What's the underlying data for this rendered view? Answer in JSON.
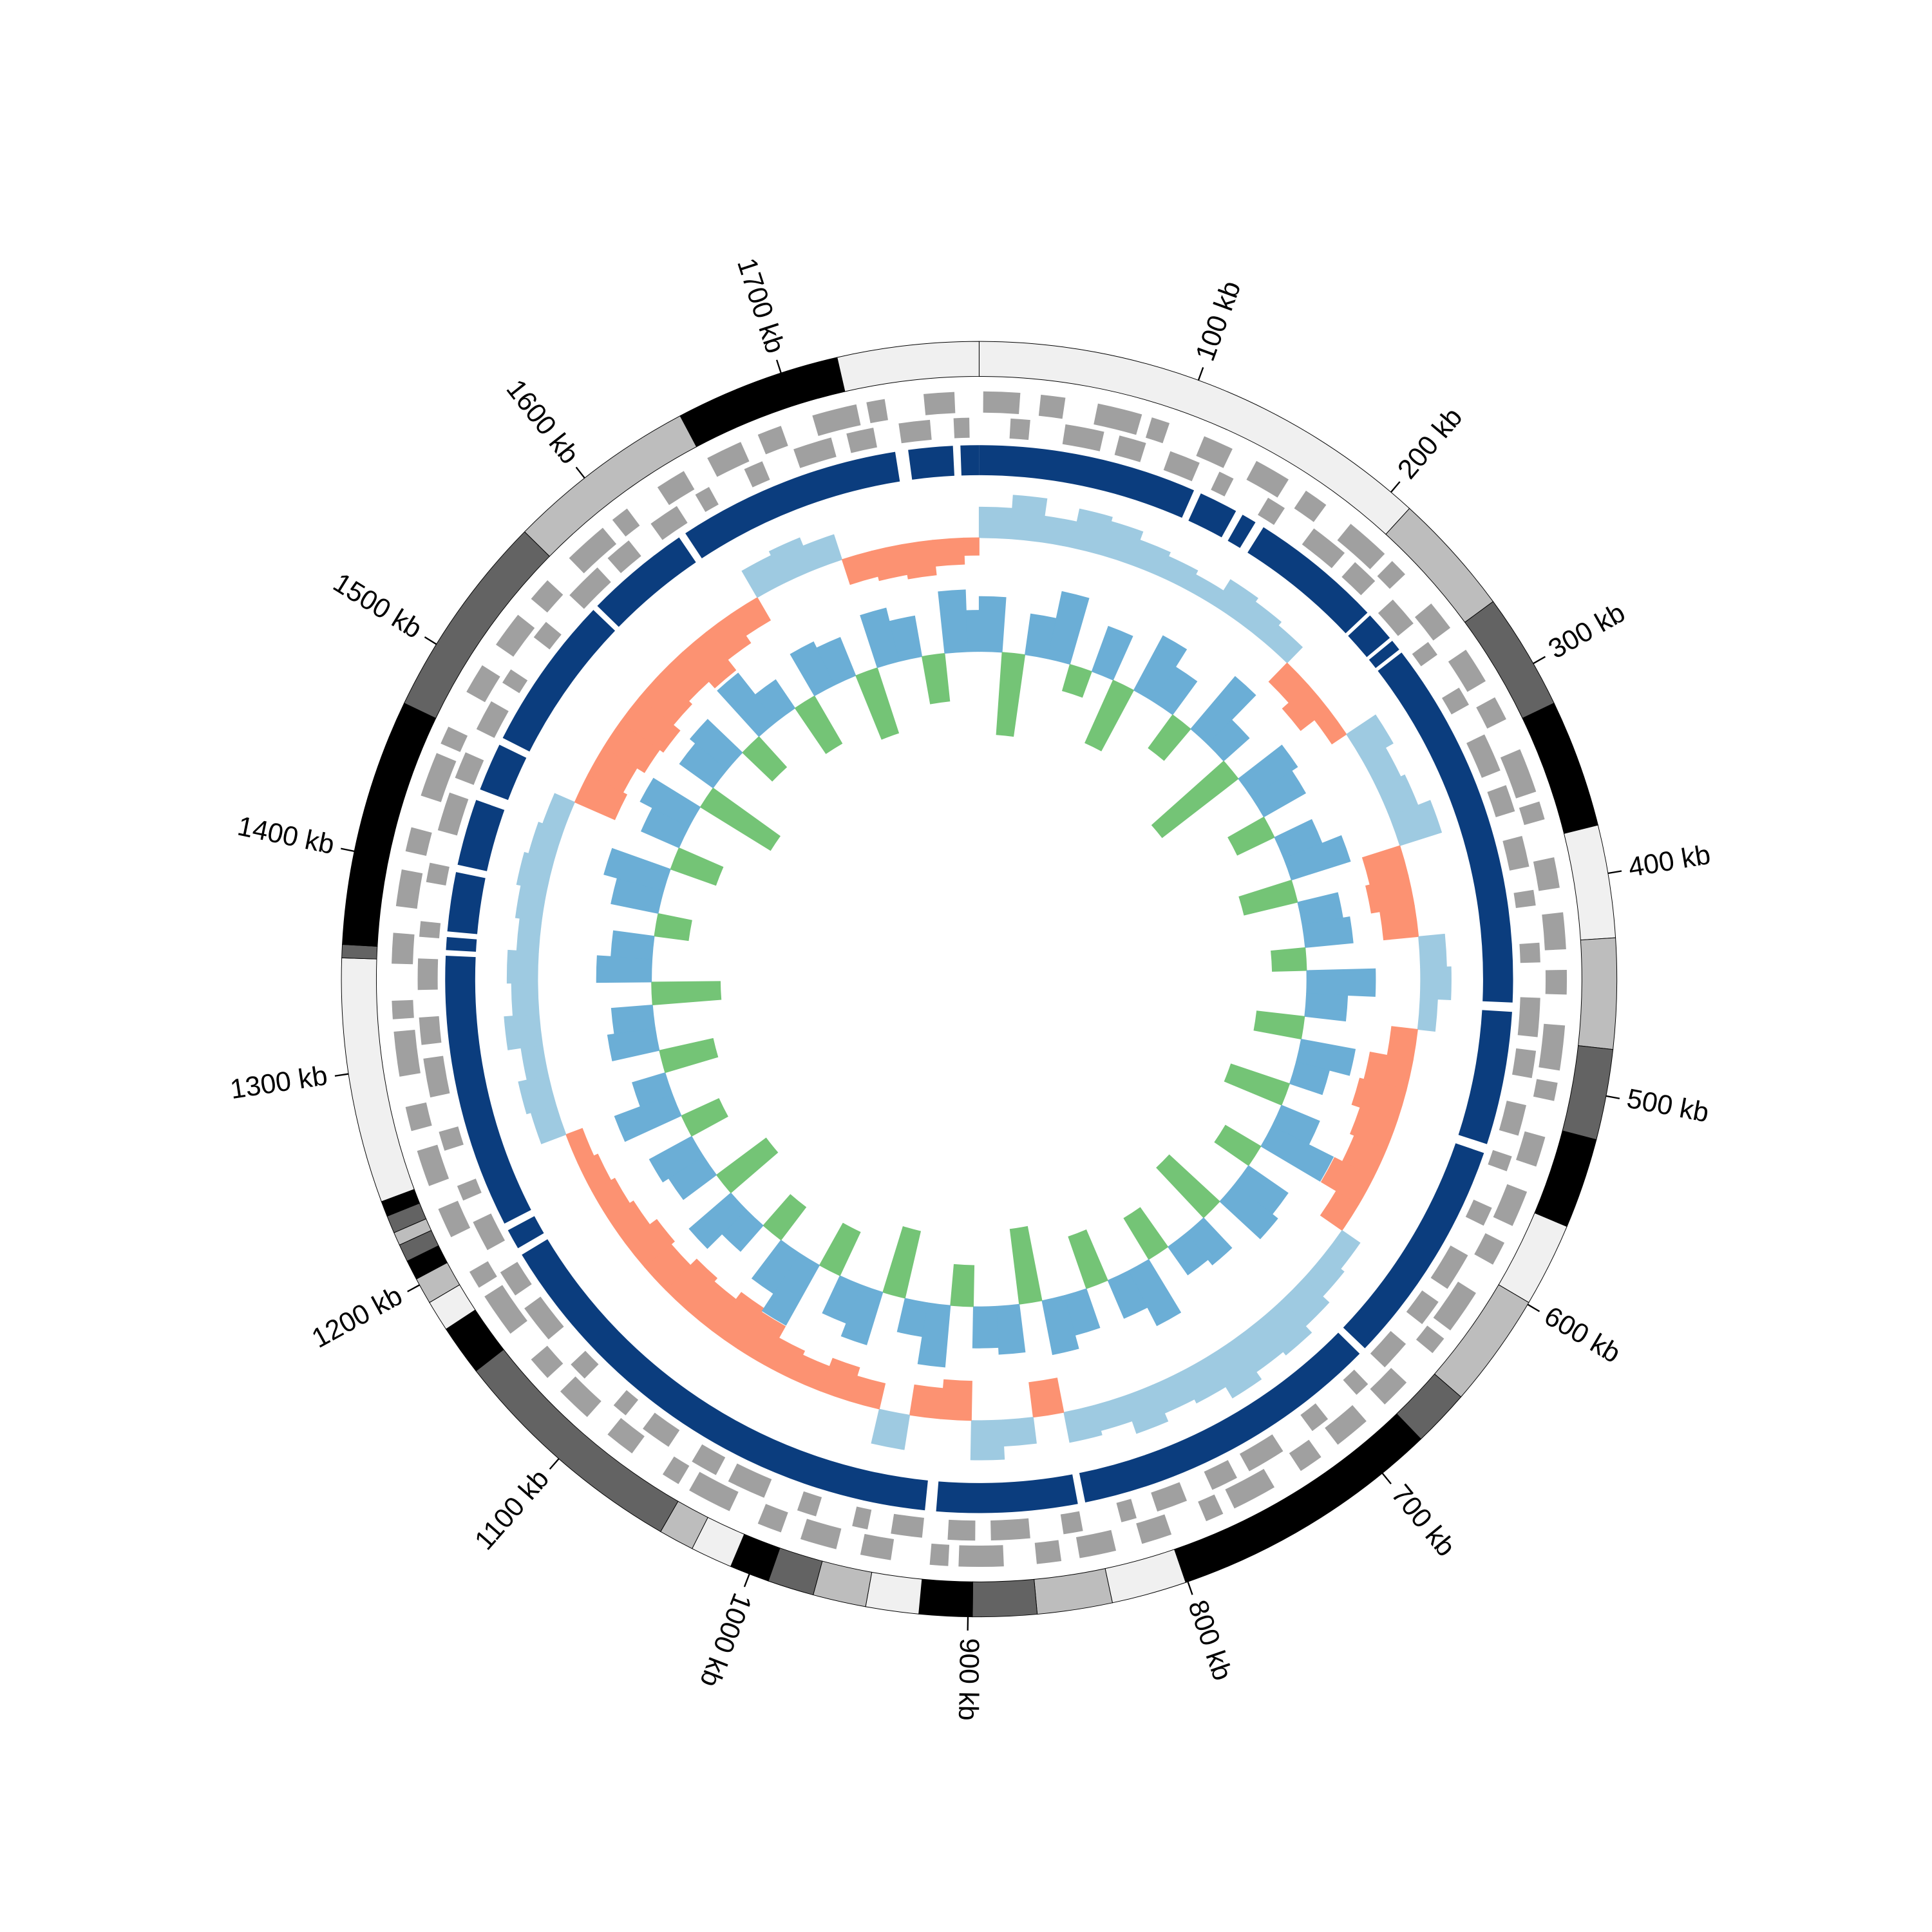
{
  "chart_data": {
    "type": "circular",
    "xlim": [
      0,
      1790
    ],
    "xticks": [
      {
        "value": 100,
        "label": "100 kb"
      },
      {
        "value": 200,
        "label": "200 kb"
      },
      {
        "value": 300,
        "label": "300 kb"
      },
      {
        "value": 400,
        "label": "400 kb"
      },
      {
        "value": 500,
        "label": "500 kb"
      },
      {
        "value": 600,
        "label": "600 kb"
      },
      {
        "value": 700,
        "label": "700 kb"
      },
      {
        "value": 800,
        "label": "800 kb"
      },
      {
        "value": 900,
        "label": "900 kb"
      },
      {
        "value": 1000,
        "label": "1000 kb"
      },
      {
        "value": 1100,
        "label": "1100 kb"
      },
      {
        "value": 1200,
        "label": "1200 kb"
      },
      {
        "value": 1300,
        "label": "1300 kb"
      },
      {
        "value": 1400,
        "label": "1400 kb"
      },
      {
        "value": 1500,
        "label": "1500 kb"
      },
      {
        "value": 1600,
        "label": "1600 kb"
      },
      {
        "value": 1700,
        "label": "1700 kb"
      }
    ],
    "bands": [
      {
        "start": 0,
        "end": 211,
        "color": "#f0f0f0"
      },
      {
        "start": 211,
        "end": 267,
        "color": "#bdbdbd"
      },
      {
        "start": 267,
        "end": 320,
        "color": "#636363"
      },
      {
        "start": 320,
        "end": 378,
        "color": "#000000"
      },
      {
        "start": 378,
        "end": 429,
        "color": "#f0f0f0"
      },
      {
        "start": 429,
        "end": 479,
        "color": "#bdbdbd"
      },
      {
        "start": 479,
        "end": 520,
        "color": "#636363"
      },
      {
        "start": 520,
        "end": 561,
        "color": "#000000"
      },
      {
        "start": 561,
        "end": 599,
        "color": "#f0f0f0"
      },
      {
        "start": 599,
        "end": 651,
        "color": "#bdbdbd"
      },
      {
        "start": 651,
        "end": 677,
        "color": "#636363"
      },
      {
        "start": 677,
        "end": 801,
        "color": "#000000"
      },
      {
        "start": 801,
        "end": 835,
        "color": "#f0f0f0"
      },
      {
        "start": 835,
        "end": 869,
        "color": "#bdbdbd"
      },
      {
        "start": 869,
        "end": 898,
        "color": "#636363"
      },
      {
        "start": 898,
        "end": 922,
        "color": "#000000"
      },
      {
        "start": 922,
        "end": 946,
        "color": "#f0f0f0"
      },
      {
        "start": 946,
        "end": 970,
        "color": "#bdbdbd"
      },
      {
        "start": 970,
        "end": 991,
        "color": "#636363"
      },
      {
        "start": 991,
        "end": 1009,
        "color": "#000000"
      },
      {
        "start": 1009,
        "end": 1028,
        "color": "#f0f0f0"
      },
      {
        "start": 1028,
        "end": 1044,
        "color": "#bdbdbd"
      },
      {
        "start": 1044,
        "end": 1154,
        "color": "#636363"
      },
      {
        "start": 1154,
        "end": 1177,
        "color": "#000000"
      },
      {
        "start": 1177,
        "end": 1191,
        "color": "#f0f0f0"
      },
      {
        "start": 1191,
        "end": 1203,
        "color": "#bdbdbd"
      },
      {
        "start": 1203,
        "end": 1212,
        "color": "#000000"
      },
      {
        "start": 1212,
        "end": 1220,
        "color": "#636363"
      },
      {
        "start": 1220,
        "end": 1226,
        "color": "#bdbdbd"
      },
      {
        "start": 1226,
        "end": 1234,
        "color": "#636363"
      },
      {
        "start": 1234,
        "end": 1241,
        "color": "#000000"
      },
      {
        "start": 1241,
        "end": 1352,
        "color": "#f0f0f0"
      },
      {
        "start": 1352,
        "end": 1358,
        "color": "#636363"
      },
      {
        "start": 1358,
        "end": 1470,
        "color": "#000000"
      },
      {
        "start": 1470,
        "end": 1564,
        "color": "#636363"
      },
      {
        "start": 1564,
        "end": 1651,
        "color": "#bdbdbd"
      },
      {
        "start": 1651,
        "end": 1726,
        "color": "#000000"
      },
      {
        "start": 1726,
        "end": 1790,
        "color": "#f0f0f0"
      }
    ],
    "genes_forward": {
      "color": "#a0a0a0",
      "spans": [
        [
          2,
          20
        ],
        [
          30,
          42
        ],
        [
          58,
          80
        ],
        [
          85,
          94
        ],
        [
          112,
          127
        ],
        [
          140,
          158
        ],
        [
          168,
          180
        ],
        [
          195,
          217
        ],
        [
          222,
          231
        ],
        [
          250,
          265
        ],
        [
          278,
          296
        ],
        [
          305,
          317
        ],
        [
          333,
          355
        ],
        [
          360,
          369
        ],
        [
          388,
          403
        ],
        [
          415,
          433
        ],
        [
          443,
          455
        ],
        [
          470,
          492
        ],
        [
          498,
          507
        ],
        [
          525,
          540
        ],
        [
          553,
          571
        ],
        [
          580,
          592
        ],
        [
          608,
          630
        ],
        [
          635,
          644
        ],
        [
          663,
          678
        ],
        [
          690,
          708
        ],
        [
          718,
          730
        ],
        [
          745,
          767
        ],
        [
          773,
          782
        ],
        [
          800,
          815
        ],
        [
          828,
          846
        ],
        [
          855,
          867
        ],
        [
          883,
          905
        ],
        [
          910,
          919
        ],
        [
          938,
          953
        ],
        [
          965,
          983
        ],
        [
          993,
          1005
        ],
        [
          1020,
          1042
        ],
        [
          1048,
          1057
        ],
        [
          1075,
          1090
        ],
        [
          1103,
          1121
        ],
        [
          1130,
          1142
        ],
        [
          1158,
          1180
        ],
        [
          1185,
          1194
        ],
        [
          1213,
          1228
        ],
        [
          1240,
          1258
        ],
        [
          1268,
          1280
        ],
        [
          1295,
          1317
        ],
        [
          1323,
          1332
        ],
        [
          1350,
          1365
        ],
        [
          1378,
          1396
        ],
        [
          1405,
          1417
        ],
        [
          1433,
          1455
        ],
        [
          1460,
          1469
        ],
        [
          1488,
          1503
        ],
        [
          1515,
          1533
        ],
        [
          1543,
          1555
        ],
        [
          1570,
          1592
        ],
        [
          1598,
          1607
        ],
        [
          1625,
          1640
        ],
        [
          1653,
          1671
        ],
        [
          1680,
          1692
        ],
        [
          1708,
          1730
        ],
        [
          1735,
          1744
        ],
        [
          1763,
          1778
        ]
      ]
    },
    "genes_reverse": {
      "color": "#a0a0a0",
      "spans": [
        [
          16,
          26
        ],
        [
          44,
          64
        ],
        [
          72,
          86
        ],
        [
          99,
          115
        ],
        [
          126,
          134
        ],
        [
          154,
          164
        ],
        [
          182,
          202
        ],
        [
          209,
          223
        ],
        [
          236,
          252
        ],
        [
          264,
          272
        ],
        [
          292,
          302
        ],
        [
          319,
          339
        ],
        [
          347,
          361
        ],
        [
          374,
          390
        ],
        [
          402,
          410
        ],
        [
          429,
          439
        ],
        [
          457,
          477
        ],
        [
          484,
          498
        ],
        [
          512,
          528
        ],
        [
          539,
          547
        ],
        [
          567,
          577
        ],
        [
          594,
          614
        ],
        [
          622,
          636
        ],
        [
          649,
          665
        ],
        [
          677,
          685
        ],
        [
          704,
          714
        ],
        [
          732,
          752
        ],
        [
          759,
          773
        ],
        [
          787,
          803
        ],
        [
          814,
          822
        ],
        [
          842,
          852
        ],
        [
          869,
          889
        ],
        [
          897,
          911
        ],
        [
          924,
          940
        ],
        [
          952,
          960
        ],
        [
          979,
          989
        ],
        [
          1007,
          1027
        ],
        [
          1034,
          1048
        ],
        [
          1062,
          1078
        ],
        [
          1089,
          1097
        ],
        [
          1117,
          1127
        ],
        [
          1144,
          1164
        ],
        [
          1172,
          1186
        ],
        [
          1199,
          1215
        ],
        [
          1227,
          1235
        ],
        [
          1254,
          1264
        ],
        [
          1282,
          1302
        ],
        [
          1309,
          1323
        ],
        [
          1337,
          1353
        ],
        [
          1364,
          1372
        ],
        [
          1392,
          1402
        ],
        [
          1419,
          1439
        ],
        [
          1447,
          1461
        ],
        [
          1474,
          1490
        ],
        [
          1501,
          1509
        ],
        [
          1529,
          1539
        ],
        [
          1557,
          1577
        ],
        [
          1584,
          1598
        ],
        [
          1612,
          1628
        ],
        [
          1639,
          1647
        ],
        [
          1667,
          1677
        ],
        [
          1694,
          1714
        ],
        [
          1722,
          1736
        ],
        [
          1749,
          1765
        ],
        [
          1777,
          1785
        ]
      ]
    },
    "contigs": {
      "color": "#0b3d7e",
      "spans": [
        [
          0,
          118
        ],
        [
          122,
          143
        ],
        [
          147,
          155
        ],
        [
          160,
          232
        ],
        [
          234,
          250
        ],
        [
          252,
          258
        ],
        [
          260,
          460
        ],
        [
          465,
          537
        ],
        [
          542,
          665
        ],
        [
          669,
          838
        ],
        [
          842,
          918
        ],
        [
          924,
          1188
        ],
        [
          1192,
          1203
        ],
        [
          1207,
          1355
        ],
        [
          1358,
          1365
        ],
        [
          1368,
          1400
        ],
        [
          1404,
          1440
        ],
        [
          1446,
          1472
        ],
        [
          1476,
          1560
        ],
        [
          1563,
          1620
        ],
        [
          1624,
          1745
        ],
        [
          1752,
          1776
        ],
        [
          1780,
          1790
        ]
      ]
    },
    "gc": {
      "x": [
        0,
        20,
        40,
        60,
        80,
        100,
        120,
        140,
        160,
        180,
        200,
        220,
        240,
        260,
        280,
        300,
        320,
        340,
        360,
        380,
        400,
        420,
        440,
        460,
        480,
        500,
        520,
        540,
        560,
        580,
        600,
        620,
        640,
        660,
        680,
        700,
        720,
        740,
        760,
        780,
        800,
        820,
        840,
        860,
        880,
        900,
        920,
        940,
        960,
        980,
        1000,
        1020,
        1040,
        1060,
        1080,
        1100,
        1120,
        1140,
        1160,
        1180,
        1200,
        1220,
        1240,
        1260,
        1280,
        1300,
        1320,
        1340,
        1360,
        1380,
        1400,
        1420,
        1440,
        1460,
        1480,
        1500,
        1520,
        1540,
        1560,
        1580,
        1600,
        1620,
        1640,
        1660,
        1680,
        1700,
        1720,
        1740,
        1760,
        1780
      ],
      "values": [
        0.35,
        0.5,
        0.3,
        0.45,
        0.4,
        0.3,
        0.25,
        0.2,
        0.35,
        0.3,
        0.25,
        -0.3,
        -0.4,
        -0.2,
        0.4,
        0.3,
        0.35,
        0.5,
        -0.45,
        -0.5,
        -0.4,
        0.3,
        0.35,
        0.2,
        -0.3,
        -0.5,
        -0.55,
        -0.45,
        -0.4,
        -0.5,
        -0.3,
        0.25,
        0.3,
        0.4,
        0.5,
        0.45,
        0.55,
        0.4,
        0.35,
        0.45,
        0.3,
        0.35,
        -0.4,
        0.3,
        0.45,
        -0.45,
        -0.35,
        0.4,
        -0.3,
        -0.4,
        -0.3,
        -0.35,
        -0.5,
        -0.55,
        -0.45,
        -0.5,
        -0.4,
        -0.45,
        -0.35,
        -0.3,
        -0.25,
        -0.2,
        0.3,
        0.35,
        0.25,
        0.4,
        0.3,
        0.35,
        0.25,
        0.3,
        0.35,
        0.3,
        0.25,
        -0.5,
        -0.45,
        -0.55,
        -0.6,
        -0.5,
        -0.45,
        -0.55,
        -0.4,
        -0.3,
        0.35,
        0.4,
        0.3,
        -0.3,
        -0.35,
        -0.4,
        -0.3,
        -0.2
      ],
      "ylim": [
        -1,
        1
      ],
      "positive_color": "#9ecae1",
      "negative_color": "#fc9272"
    },
    "skew": {
      "x": [
        0,
        20,
        40,
        60,
        80,
        100,
        120,
        140,
        160,
        180,
        200,
        220,
        240,
        260,
        280,
        300,
        320,
        340,
        360,
        380,
        400,
        420,
        440,
        460,
        480,
        500,
        520,
        540,
        560,
        580,
        600,
        620,
        640,
        660,
        680,
        700,
        720,
        740,
        760,
        780,
        800,
        820,
        840,
        860,
        880,
        900,
        920,
        940,
        960,
        980,
        1000,
        1020,
        1040,
        1060,
        1080,
        1100,
        1120,
        1140,
        1160,
        1180,
        1200,
        1220,
        1240,
        1260,
        1280,
        1300,
        1320,
        1340,
        1360,
        1380,
        1400,
        1420,
        1440,
        1460,
        1480,
        1500,
        1520,
        1540,
        1560,
        1580,
        1600,
        1620,
        1640,
        1660,
        1680,
        1700,
        1720,
        1740,
        1760,
        1780
      ],
      "values": [
        0.4,
        -0.6,
        0.3,
        0.5,
        -0.2,
        0.35,
        -0.5,
        0.45,
        0.3,
        -0.3,
        0.5,
        0.25,
        -0.7,
        0.4,
        0.35,
        -0.3,
        0.3,
        0.45,
        -0.4,
        0.3,
        0.35,
        -0.25,
        0.5,
        0.3,
        -0.35,
        0.4,
        0.25,
        -0.45,
        0.3,
        0.5,
        -0.3,
        0.35,
        0.4,
        -0.5,
        0.3,
        0.25,
        -0.35,
        0.45,
        0.3,
        -0.4,
        0.3,
        0.4,
        -0.55,
        0.35,
        0.3,
        -0.3,
        0.45,
        0.25,
        -0.5,
        0.4,
        0.3,
        -0.35,
        0.5,
        0.35,
        -0.3,
        0.25,
        0.4,
        -0.45,
        0.3,
        0.35,
        -0.3,
        0.45,
        0.25,
        -0.4,
        0.35,
        0.3,
        -0.5,
        0.4,
        0.3,
        -0.25,
        0.35,
        0.45,
        -0.35,
        0.3,
        0.4,
        -0.6,
        0.3,
        0.35,
        -0.3,
        0.45,
        0.25,
        -0.4,
        0.35,
        0.3,
        -0.5,
        0.4,
        0.3,
        -0.35,
        0.45,
        0.3
      ],
      "ylim": [
        -1,
        1
      ],
      "positive_color": "#6baed6",
      "negative_color": "#74c476"
    }
  }
}
